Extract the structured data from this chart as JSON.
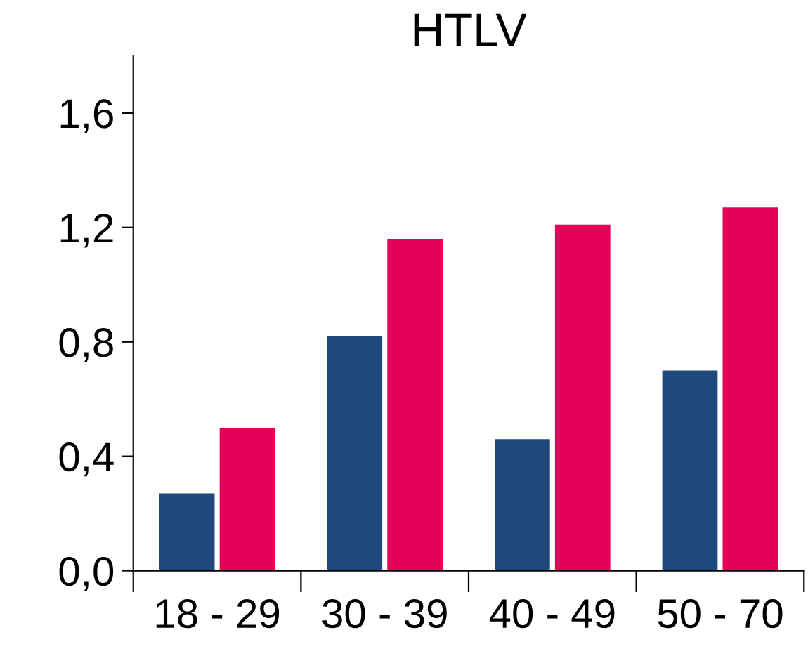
{
  "chart_data": {
    "type": "bar",
    "title": "HTLV",
    "categories": [
      "18 - 29",
      "30 - 39",
      "40 - 49",
      "50 - 70"
    ],
    "series": [
      {
        "color": "#1f497d",
        "values": [
          0.27,
          0.82,
          0.46,
          0.7
        ]
      },
      {
        "color": "#e5005a",
        "values": [
          0.5,
          1.16,
          1.21,
          1.27
        ]
      }
    ],
    "ylim": [
      0,
      1.8
    ],
    "yticks": [
      {
        "value": 0,
        "label": "0,0"
      },
      {
        "value": 0.4,
        "label": "0,4"
      },
      {
        "value": 0.8,
        "label": "0,8"
      },
      {
        "value": 1.2,
        "label": "1,2"
      },
      {
        "value": 1.6,
        "label": "1,6"
      }
    ],
    "grid": false,
    "legend": false
  }
}
